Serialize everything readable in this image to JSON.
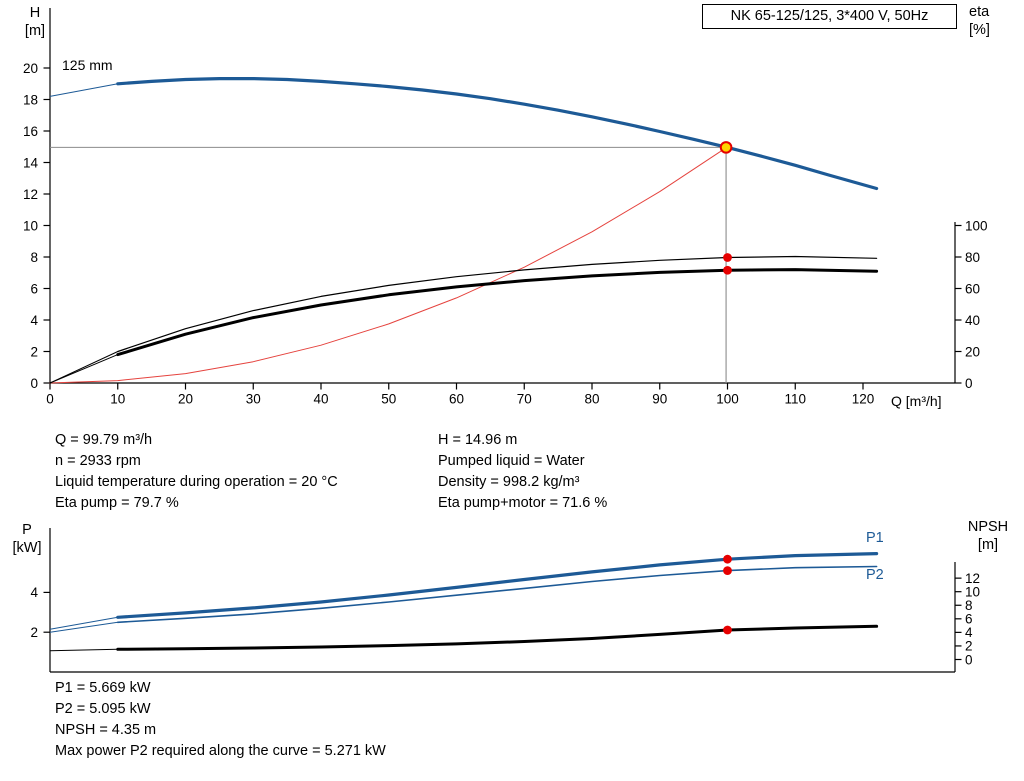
{
  "info": {
    "left": [
      "Q = 99.79 m³/h",
      "n = 2933 rpm",
      "Liquid temperature during operation = 20 °C",
      "Eta pump = 79.7 %"
    ],
    "right": [
      "H = 14.96 m",
      "Pumped liquid = Water",
      "Density = 998.2 kg/m³",
      "Eta pump+motor = 71.6 %"
    ]
  },
  "footer": [
    "P1 = 5.669 kW",
    "P2 = 5.095 kW",
    "NPSH = 4.35 m",
    "Max power P2 required along the curve = 5.271 kW"
  ],
  "colors": {
    "curve_blue": "#1d5a96",
    "marker_red": "#e60000",
    "system_red": "#e5433e",
    "operating_fill": "#ffd400",
    "crosshair_gray": "#8c8c8c",
    "black": "#000000"
  },
  "chart_data": [
    {
      "type": "line",
      "title": "NK 65-125/125, 3*400 V, 50Hz",
      "xlabel": "Q [m³/h]",
      "ylabel_left": "H\n[m]",
      "ylabel_right": "eta\n[%]",
      "annotation": "125 mm",
      "xlim": [
        0,
        133
      ],
      "x_ticks": [
        0,
        10,
        20,
        30,
        40,
        50,
        60,
        70,
        80,
        90,
        100,
        110,
        120
      ],
      "ylim_left": [
        0,
        23.8
      ],
      "y_ticks_left": [
        0,
        2,
        4,
        6,
        8,
        10,
        12,
        14,
        16,
        18,
        20
      ],
      "ylim_right": [
        0,
        100
      ],
      "y_ticks_right": [
        0,
        20,
        40,
        60,
        80,
        100
      ],
      "grid": false,
      "series": [
        {
          "name": "head",
          "label": "125 mm",
          "axis": "H",
          "color": "#1d5a96",
          "width": 3.2,
          "lead": [
            [
              0,
              18.2
            ]
          ],
          "points": [
            [
              10,
              19.0
            ],
            [
              15,
              19.15
            ],
            [
              20,
              19.27
            ],
            [
              25,
              19.33
            ],
            [
              30,
              19.33
            ],
            [
              35,
              19.27
            ],
            [
              40,
              19.15
            ],
            [
              45,
              19.0
            ],
            [
              50,
              18.82
            ],
            [
              55,
              18.6
            ],
            [
              60,
              18.35
            ],
            [
              65,
              18.05
            ],
            [
              70,
              17.7
            ],
            [
              75,
              17.32
            ],
            [
              80,
              16.9
            ],
            [
              85,
              16.45
            ],
            [
              90,
              15.97
            ],
            [
              95,
              15.47
            ],
            [
              100,
              14.96
            ],
            [
              105,
              14.4
            ],
            [
              110,
              13.82
            ],
            [
              115,
              13.2
            ],
            [
              122,
              12.35
            ]
          ]
        },
        {
          "name": "system-curve",
          "label": "system",
          "axis": "H",
          "color": "#e5433e",
          "width": 1,
          "points": [
            [
              0,
              0
            ],
            [
              10,
              0.15
            ],
            [
              20,
              0.6
            ],
            [
              30,
              1.35
            ],
            [
              40,
              2.4
            ],
            [
              50,
              3.75
            ],
            [
              60,
              5.4
            ],
            [
              70,
              7.35
            ],
            [
              80,
              9.6
            ],
            [
              90,
              12.15
            ],
            [
              100,
              15.0
            ]
          ]
        },
        {
          "name": "eta-pump",
          "label": "Eta pump",
          "axis": "eta",
          "color": "#000000",
          "width": 1.2,
          "lead": [
            [
              0,
              0
            ]
          ],
          "points": [
            [
              10,
              20
            ],
            [
              20,
              34.5
            ],
            [
              30,
              46
            ],
            [
              40,
              55
            ],
            [
              50,
              62
            ],
            [
              60,
              67.5
            ],
            [
              70,
              71.8
            ],
            [
              80,
              75.3
            ],
            [
              90,
              77.9
            ],
            [
              100,
              79.7
            ],
            [
              110,
              80.3
            ],
            [
              122,
              79.2
            ]
          ]
        },
        {
          "name": "eta-pump-motor",
          "label": "Eta pump+motor",
          "axis": "eta",
          "color": "#000000",
          "width": 3,
          "lead": [
            [
              0,
              0
            ]
          ],
          "points": [
            [
              10,
              18
            ],
            [
              20,
              31
            ],
            [
              30,
              41.5
            ],
            [
              40,
              49.5
            ],
            [
              50,
              56
            ],
            [
              60,
              61
            ],
            [
              70,
              65
            ],
            [
              80,
              68
            ],
            [
              90,
              70.2
            ],
            [
              100,
              71.6
            ],
            [
              110,
              72.0
            ],
            [
              122,
              71.0
            ]
          ]
        }
      ],
      "operating_point": {
        "q": 99.79,
        "h": 14.96
      },
      "markers": [
        {
          "q": 100,
          "v": 79.7,
          "axis": "eta"
        },
        {
          "q": 100,
          "v": 71.6,
          "axis": "eta"
        }
      ]
    },
    {
      "type": "line",
      "title": "",
      "xlabel": "",
      "ylabel_left": "P\n[kW]",
      "ylabel_right": "NPSH\n[m]",
      "xlim": [
        0,
        133
      ],
      "x_ticks": [],
      "ylim_left": [
        0,
        7.2
      ],
      "y_ticks_left": [
        2,
        4
      ],
      "ylim_right": [
        0,
        14
      ],
      "y_ticks_right": [
        0,
        2,
        4,
        6,
        8,
        10,
        12
      ],
      "grid": false,
      "series": [
        {
          "name": "p1",
          "label": "P1",
          "axis": "P",
          "color": "#1d5a96",
          "width": 3.2,
          "lead": [
            [
              0,
              2.15
            ]
          ],
          "points": [
            [
              10,
              2.75
            ],
            [
              20,
              2.97
            ],
            [
              30,
              3.22
            ],
            [
              40,
              3.52
            ],
            [
              50,
              3.87
            ],
            [
              60,
              4.25
            ],
            [
              70,
              4.65
            ],
            [
              80,
              5.03
            ],
            [
              90,
              5.38
            ],
            [
              100,
              5.669
            ],
            [
              110,
              5.85
            ],
            [
              122,
              5.95
            ]
          ]
        },
        {
          "name": "p2",
          "label": "P2",
          "axis": "P",
          "color": "#1d5a96",
          "width": 1.6,
          "lead": [
            [
              0,
              2.0
            ]
          ],
          "points": [
            [
              10,
              2.5
            ],
            [
              20,
              2.7
            ],
            [
              30,
              2.92
            ],
            [
              40,
              3.2
            ],
            [
              50,
              3.52
            ],
            [
              60,
              3.86
            ],
            [
              70,
              4.2
            ],
            [
              80,
              4.55
            ],
            [
              90,
              4.85
            ],
            [
              100,
              5.095
            ],
            [
              110,
              5.24
            ],
            [
              122,
              5.3
            ]
          ]
        },
        {
          "name": "npsh",
          "label": "NPSH",
          "axis": "NPSH",
          "color": "#000000",
          "width": 3,
          "lead": [
            [
              0,
              1.3
            ]
          ],
          "points": [
            [
              10,
              1.5
            ],
            [
              20,
              1.6
            ],
            [
              30,
              1.7
            ],
            [
              40,
              1.85
            ],
            [
              50,
              2.05
            ],
            [
              60,
              2.3
            ],
            [
              70,
              2.65
            ],
            [
              80,
              3.1
            ],
            [
              90,
              3.7
            ],
            [
              100,
              4.35
            ],
            [
              110,
              4.65
            ],
            [
              122,
              4.9
            ]
          ]
        }
      ],
      "markers": [
        {
          "q": 100,
          "v": 5.669,
          "axis": "P"
        },
        {
          "q": 100,
          "v": 5.095,
          "axis": "P"
        },
        {
          "q": 100,
          "v": 4.35,
          "axis": "NPSH"
        }
      ]
    }
  ]
}
